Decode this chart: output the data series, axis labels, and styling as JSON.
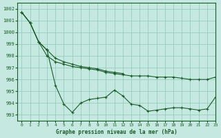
{
  "title": "Graphe pression niveau de la mer (hPa)",
  "bg_color": "#c5e8e0",
  "grid_color": "#8cc8b8",
  "line_color": "#1a5c28",
  "ylim": [
    992.5,
    1002.5
  ],
  "xlim": [
    -0.5,
    23
  ],
  "yticks": [
    993,
    994,
    995,
    996,
    997,
    998,
    999,
    1000,
    1001,
    1002
  ],
  "xticks": [
    0,
    1,
    2,
    3,
    4,
    5,
    6,
    7,
    8,
    9,
    10,
    11,
    12,
    13,
    14,
    15,
    16,
    17,
    18,
    19,
    20,
    21,
    22,
    23
  ],
  "series": [
    {
      "x": [
        0,
        1,
        2,
        3,
        4,
        5,
        6,
        7,
        8,
        9,
        10,
        11,
        12,
        13,
        14,
        15,
        16,
        17,
        18,
        19,
        20,
        21,
        22,
        23
      ],
      "y": [
        1001.7,
        1000.8,
        999.2,
        998.0,
        997.5,
        997.3,
        997.1,
        997.0,
        996.9,
        996.8,
        996.6,
        996.5,
        996.4,
        996.3,
        996.3,
        996.3,
        996.2,
        996.2,
        996.2,
        996.1,
        996.0,
        996.0,
        996.0,
        996.2
      ]
    },
    {
      "x": [
        0,
        1,
        2,
        3,
        4,
        5,
        6,
        7,
        8,
        9,
        10,
        11,
        12
      ],
      "y": [
        1001.7,
        1000.8,
        999.2,
        998.5,
        997.8,
        997.5,
        997.3,
        997.1,
        997.0,
        996.9,
        996.7,
        996.6,
        996.5
      ]
    },
    {
      "x": [
        0,
        1,
        2,
        3
      ],
      "y": [
        1001.7,
        1000.8,
        999.2,
        998.5
      ]
    },
    {
      "x": [
        3,
        4,
        5,
        6,
        7,
        8,
        9,
        10,
        11,
        12,
        13,
        14,
        15,
        16,
        17,
        18,
        19,
        20,
        21,
        22,
        23
      ],
      "y": [
        998.5,
        995.5,
        993.9,
        993.2,
        994.0,
        994.3,
        994.4,
        994.5,
        995.1,
        994.6,
        993.9,
        993.8,
        993.3,
        993.4,
        993.5,
        993.6,
        993.6,
        993.5,
        993.4,
        993.5,
        994.5
      ]
    }
  ]
}
